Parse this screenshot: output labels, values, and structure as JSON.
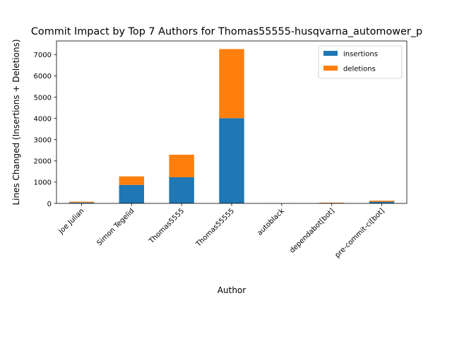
{
  "chart_data": {
    "type": "bar",
    "stacked": true,
    "title": "Commit Impact by Top 7 Authors for Thomas55555-husqvarna_automower_p",
    "xlabel": "Author",
    "ylabel": "Lines Changed (Insertions + Deletions)",
    "categories": [
      "Joe Julian",
      "Simon Tegelid",
      "Thomas5555",
      "Thomas55555",
      "autoblack",
      "dependabot[bot]",
      "pre-commit-ci[bot]"
    ],
    "series": [
      {
        "name": "insertions",
        "color": "#1f77b4",
        "values": [
          40,
          870,
          1230,
          4010,
          2,
          15,
          80
        ]
      },
      {
        "name": "deletions",
        "color": "#ff7f0e",
        "values": [
          40,
          400,
          1060,
          3250,
          2,
          20,
          50
        ]
      }
    ],
    "yticks": [
      0,
      1000,
      2000,
      3000,
      4000,
      5000,
      6000,
      7000
    ],
    "ylim": [
      0,
      7640
    ],
    "grid": false,
    "legend_position": "top-right"
  }
}
